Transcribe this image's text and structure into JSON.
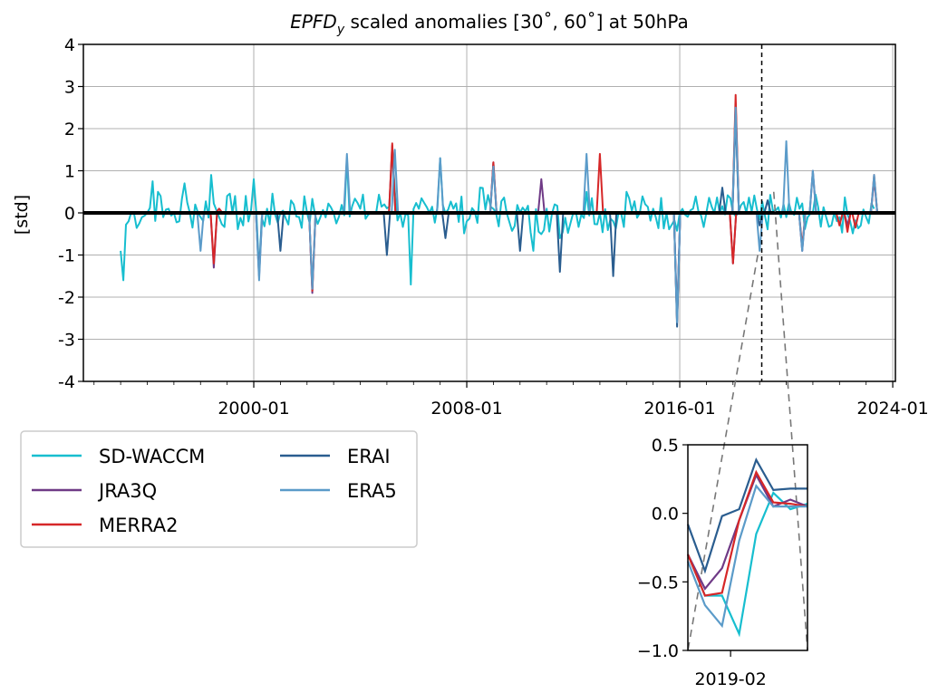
{
  "chart_data": {
    "type": "line",
    "title": "EPFD",
    "title_subscript": "y",
    "title_rest": " scaled anomalies [30˚, 60˚] at 50hPa",
    "ylabel": "[std]",
    "xlabel": "",
    "grid": true,
    "legend_placement": "below-left",
    "xlim": [
      1993.6,
      2024.1
    ],
    "ylim": [
      -4,
      4
    ],
    "x_ticks": [
      {
        "x": 2000.0,
        "label": "2000-01"
      },
      {
        "x": 2008.0,
        "label": "2008-01"
      },
      {
        "x": 2016.0,
        "label": "2016-01"
      },
      {
        "x": 2024.0,
        "label": "2024-01"
      }
    ],
    "y_ticks": [
      {
        "y": 4,
        "label": "4"
      },
      {
        "y": 3,
        "label": "3"
      },
      {
        "y": 2,
        "label": "2"
      },
      {
        "y": 1,
        "label": "1"
      },
      {
        "y": 0,
        "label": "0"
      },
      {
        "y": -1,
        "label": "-1"
      },
      {
        "y": -2,
        "label": "-2"
      },
      {
        "y": -3,
        "label": "-3"
      },
      {
        "y": -4,
        "label": "-4"
      }
    ],
    "event_marker_x": 2019.08,
    "series": [
      {
        "name": "SD-WACCM",
        "color": "#17becf",
        "points": [
          [
            1995.0,
            -0.9
          ],
          [
            1995.1,
            -1.6
          ],
          [
            1995.3,
            -0.2
          ],
          [
            1995.5,
            0.0
          ],
          [
            1995.8,
            -0.1
          ],
          [
            1996.0,
            0.0
          ],
          [
            1996.2,
            0.75
          ],
          [
            1996.4,
            0.5
          ],
          [
            1996.6,
            -0.1
          ],
          [
            1996.8,
            0.1
          ],
          [
            1997.0,
            0.0
          ],
          [
            1997.2,
            -0.2
          ],
          [
            1997.4,
            0.7
          ],
          [
            1997.6,
            0.0
          ],
          [
            1997.8,
            0.2
          ],
          [
            1998.0,
            -0.1
          ],
          [
            1998.4,
            0.9
          ],
          [
            1998.7,
            -0.1
          ],
          [
            1999.0,
            0.4
          ],
          [
            1999.2,
            0.0
          ],
          [
            1999.6,
            -0.3
          ],
          [
            2000.0,
            0.8
          ],
          [
            2000.2,
            -1.4
          ],
          [
            2000.5,
            0.1
          ],
          [
            2001.0,
            0.0
          ],
          [
            2001.5,
            0.2
          ],
          [
            2002.0,
            0.0
          ],
          [
            2002.5,
            -0.1
          ],
          [
            2003.0,
            0.0
          ],
          [
            2003.5,
            1.3
          ],
          [
            2004.0,
            0.1
          ],
          [
            2004.5,
            0.0
          ],
          [
            2005.2,
            1.5
          ],
          [
            2005.5,
            0.0
          ],
          [
            2005.9,
            -1.7
          ],
          [
            2006.2,
            0.1
          ],
          [
            2006.6,
            0.0
          ],
          [
            2007.0,
            1.3
          ],
          [
            2007.5,
            0.1
          ],
          [
            2008.0,
            -0.2
          ],
          [
            2008.5,
            0.6
          ],
          [
            2009.0,
            0.1
          ],
          [
            2009.5,
            0.0
          ],
          [
            2010.0,
            0.0
          ],
          [
            2010.5,
            -0.9
          ],
          [
            2011.0,
            0.1
          ],
          [
            2011.5,
            -0.6
          ],
          [
            2012.0,
            0.0
          ],
          [
            2012.5,
            0.5
          ],
          [
            2013.0,
            0.0
          ],
          [
            2013.5,
            -0.2
          ],
          [
            2014.0,
            0.5
          ],
          [
            2014.5,
            0.0
          ],
          [
            2015.0,
            0.1
          ],
          [
            2015.5,
            0.0
          ],
          [
            2016.0,
            0.0
          ],
          [
            2016.5,
            0.1
          ],
          [
            2017.0,
            0.0
          ],
          [
            2017.5,
            0.0
          ],
          [
            2018.0,
            0.0
          ],
          [
            2018.5,
            0.0
          ],
          [
            2019.0,
            -0.15
          ],
          [
            2019.5,
            0.05
          ],
          [
            2020.0,
            -0.1
          ],
          [
            2020.5,
            0.1
          ],
          [
            2021.0,
            0.0
          ],
          [
            2021.5,
            -0.1
          ],
          [
            2022.0,
            -0.1
          ],
          [
            2022.4,
            -0.2
          ],
          [
            2022.8,
            -0.3
          ],
          [
            2023.0,
            -0.1
          ],
          [
            2023.3,
            0.1
          ]
        ]
      },
      {
        "name": "JRA3Q",
        "color": "#6f3a86",
        "points": [
          [
            1998.5,
            -1.3
          ],
          [
            1998.7,
            0.1
          ],
          [
            2000.2,
            -1.5
          ],
          [
            2002.2,
            -1.9
          ],
          [
            2005.2,
            1.6
          ],
          [
            2009.0,
            1.2
          ],
          [
            2010.8,
            0.8
          ],
          [
            2015.9,
            -2.5
          ],
          [
            2018.0,
            -1.2
          ],
          [
            2018.1,
            2.6
          ],
          [
            2020.6,
            -0.9
          ],
          [
            2021.0,
            1.0
          ],
          [
            2022.3,
            -0.3
          ],
          [
            2023.3,
            0.8
          ]
        ]
      },
      {
        "name": "MERRA2",
        "color": "#d62728",
        "points": [
          [
            1998.5,
            -1.2
          ],
          [
            1998.7,
            0.1
          ],
          [
            2002.2,
            -1.85
          ],
          [
            2005.2,
            1.65
          ],
          [
            2009.0,
            1.2
          ],
          [
            2013.0,
            1.4
          ],
          [
            2015.9,
            -2.6
          ],
          [
            2018.0,
            -1.2
          ],
          [
            2018.1,
            2.8
          ],
          [
            2020.6,
            -0.8
          ],
          [
            2022.0,
            -0.3
          ],
          [
            2022.3,
            -0.45
          ],
          [
            2022.6,
            -0.35
          ],
          [
            2023.3,
            0.9
          ]
        ]
      },
      {
        "name": "ERAI",
        "color": "#2a5d8f",
        "points": [
          [
            2001.0,
            -0.9
          ],
          [
            2005.0,
            -1.0
          ],
          [
            2007.2,
            -0.6
          ],
          [
            2010.0,
            -0.9
          ],
          [
            2011.5,
            -1.4
          ],
          [
            2013.5,
            -1.5
          ],
          [
            2015.9,
            -2.7
          ],
          [
            2017.6,
            0.6
          ],
          [
            2018.1,
            2.3
          ],
          [
            2019.0,
            -0.3
          ],
          [
            2019.3,
            0.3
          ],
          [
            2020.0,
            0.0
          ]
        ]
      },
      {
        "name": "ERA5",
        "color": "#5b9bc9",
        "points": [
          [
            1998.0,
            -0.9
          ],
          [
            2000.2,
            -1.6
          ],
          [
            2002.2,
            -1.8
          ],
          [
            2003.5,
            1.4
          ],
          [
            2005.3,
            1.5
          ],
          [
            2007.0,
            1.3
          ],
          [
            2009.0,
            1.1
          ],
          [
            2012.5,
            1.4
          ],
          [
            2015.9,
            -2.6
          ],
          [
            2018.1,
            2.5
          ],
          [
            2019.0,
            -0.9
          ],
          [
            2020.0,
            1.7
          ],
          [
            2020.6,
            -0.9
          ],
          [
            2021.0,
            1.0
          ],
          [
            2023.3,
            0.9
          ]
        ]
      }
    ],
    "inset": {
      "xlabel": "2019-02",
      "ylim": [
        -1.0,
        0.5
      ],
      "y_ticks": [
        {
          "y": 0.5,
          "label": "0.5"
        },
        {
          "y": 0.0,
          "label": "0.0"
        },
        {
          "y": -0.5,
          "label": "−0.5"
        },
        {
          "y": -1.0,
          "label": "−1.0"
        }
      ],
      "x_values": [
        0,
        1,
        2,
        3,
        4,
        5,
        6,
        7
      ],
      "series": [
        {
          "name": "SD-WACCM",
          "values": [
            -0.3,
            -0.6,
            -0.6,
            -0.88,
            -0.15,
            0.15,
            0.03,
            0.07
          ]
        },
        {
          "name": "JRA3Q",
          "values": [
            -0.3,
            -0.55,
            -0.4,
            -0.05,
            0.28,
            0.05,
            0.1,
            0.05
          ]
        },
        {
          "name": "MERRA2",
          "values": [
            -0.3,
            -0.6,
            -0.58,
            -0.05,
            0.3,
            0.08,
            0.07,
            0.05
          ]
        },
        {
          "name": "ERAI",
          "values": [
            -0.08,
            -0.42,
            -0.02,
            0.03,
            0.39,
            0.17,
            0.18,
            0.18
          ]
        },
        {
          "name": "ERA5",
          "values": [
            -0.35,
            -0.67,
            -0.82,
            -0.2,
            0.2,
            0.05,
            0.05,
            0.05
          ]
        }
      ]
    }
  }
}
